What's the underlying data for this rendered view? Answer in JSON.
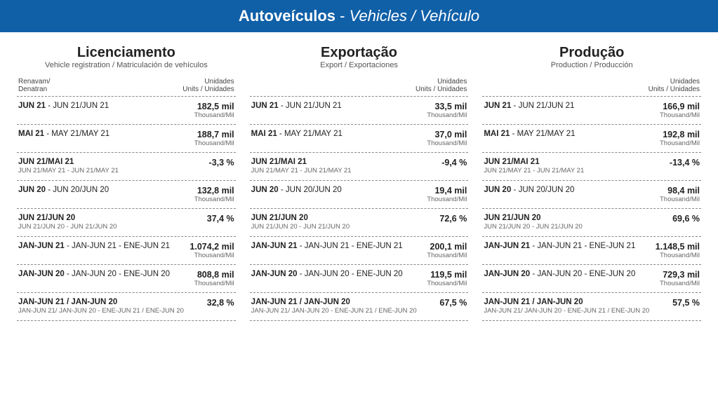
{
  "header": {
    "title_bold": "Autoveículos",
    "title_sep": " - ",
    "title_sub": "Vehicles / Vehículo"
  },
  "columns": [
    {
      "title": "Licenciamento",
      "subtitle": "Vehicle registration / Matriculación de vehículos",
      "subhead_left_l1": "Renavam/",
      "subhead_left_l2": "Denatran",
      "subhead_right_l1": "Unidades",
      "subhead_right_l2": "Units / Unidades",
      "rows": [
        {
          "l1_bold": "JUN 21",
          "l1_rest": " - JUN 21/JUN 21",
          "l2": "",
          "v1": "182,5 mil",
          "v2": "Thousand/Mil"
        },
        {
          "l1_bold": "MAI 21",
          "l1_rest": " - MAY 21/MAY 21",
          "l2": "",
          "v1": "188,7 mil",
          "v2": "Thousand/Mil"
        },
        {
          "l1_bold": "JUN 21/MAI 21",
          "l1_rest": "",
          "l2": "JUN 21/MAY 21 - JUN 21/MAY 21",
          "v1": "-3,3 %",
          "v2": ""
        },
        {
          "l1_bold": "JUN 20",
          "l1_rest": " - JUN 20/JUN 20",
          "l2": "",
          "v1": "132,8 mil",
          "v2": "Thousand/Mil"
        },
        {
          "l1_bold": "JUN 21/JUN 20",
          "l1_rest": "",
          "l2": "JUN 21/JUN 20 - JUN 21/JUN 20",
          "v1": "37,4 %",
          "v2": ""
        },
        {
          "l1_bold": "JAN-JUN 21",
          "l1_rest": " - JAN-JUN 21 - ENE-JUN 21",
          "l2": "",
          "v1": "1.074,2 mil",
          "v2": "Thousand/Mil"
        },
        {
          "l1_bold": "JAN-JUN 20",
          "l1_rest": " - JAN-JUN 20 - ENE-JUN 20",
          "l2": "",
          "v1": "808,8 mil",
          "v2": "Thousand/Mil"
        },
        {
          "l1_bold": "JAN-JUN 21 / JAN-JUN 20",
          "l1_rest": "",
          "l2": "JAN-JUN 21/ JAN-JUN  20 - ENE-JUN  21 / ENE-JUN 20",
          "v1": "32,8 %",
          "v2": ""
        }
      ]
    },
    {
      "title": "Exportação",
      "subtitle": "Export / Exportaciones",
      "subhead_left_l1": "",
      "subhead_left_l2": "",
      "subhead_right_l1": "Unidades",
      "subhead_right_l2": "Units / Unidades",
      "rows": [
        {
          "l1_bold": "JUN 21",
          "l1_rest": " - JUN 21/JUN 21",
          "l2": "",
          "v1": "33,5 mil",
          "v2": "Thousand/Mil"
        },
        {
          "l1_bold": "MAI 21",
          "l1_rest": " - MAY 21/MAY 21",
          "l2": "",
          "v1": "37,0 mil",
          "v2": "Thousand/Mil"
        },
        {
          "l1_bold": "JUN 21/MAI 21",
          "l1_rest": "",
          "l2": "JUN 21/MAY 21 - JUN 21/MAY 21",
          "v1": "-9,4 %",
          "v2": ""
        },
        {
          "l1_bold": "JUN 20",
          "l1_rest": " - JUN 20/JUN 20",
          "l2": "",
          "v1": "19,4 mil",
          "v2": "Thousand/Mil"
        },
        {
          "l1_bold": "JUN 21/JUN 20",
          "l1_rest": "",
          "l2": "JUN 21/JUN 20 - JUN 21/JUN 20",
          "v1": "72,6 %",
          "v2": ""
        },
        {
          "l1_bold": "JAN-JUN 21",
          "l1_rest": " - JAN-JUN 21 - ENE-JUN 21",
          "l2": "",
          "v1": "200,1 mil",
          "v2": "Thousand/Mil"
        },
        {
          "l1_bold": "JAN-JUN 20",
          "l1_rest": " - JAN-JUN 20 - ENE-JUN 20",
          "l2": "",
          "v1": "119,5 mil",
          "v2": "Thousand/Mil"
        },
        {
          "l1_bold": "JAN-JUN 21 / JAN-JUN 20",
          "l1_rest": "",
          "l2": "JAN-JUN 21/ JAN-JUN  20 - ENE-JUN  21 / ENE-JUN 20",
          "v1": "67,5 %",
          "v2": ""
        }
      ]
    },
    {
      "title": "Produção",
      "subtitle": "Production / Producción",
      "subhead_left_l1": "",
      "subhead_left_l2": "",
      "subhead_right_l1": "Unidades",
      "subhead_right_l2": "Units / Unidades",
      "rows": [
        {
          "l1_bold": "JUN 21",
          "l1_rest": " - JUN 21/JUN 21",
          "l2": "",
          "v1": "166,9 mil",
          "v2": "Thousand/Mil"
        },
        {
          "l1_bold": "MAI 21",
          "l1_rest": " - MAY 21/MAY 21",
          "l2": "",
          "v1": "192,8 mil",
          "v2": "Thousand/Mil"
        },
        {
          "l1_bold": "JUN 21/MAI 21",
          "l1_rest": "",
          "l2": "JUN 21/MAY 21 - JUN 21/MAY 21",
          "v1": "-13,4 %",
          "v2": ""
        },
        {
          "l1_bold": "JUN 20",
          "l1_rest": " - JUN 20/JUN 20",
          "l2": "",
          "v1": "98,4 mil",
          "v2": "Thousand/Mil"
        },
        {
          "l1_bold": "JUN 21/JUN 20",
          "l1_rest": "",
          "l2": "JUN 21/JUN 20 - JUN 21/JUN 20",
          "v1": "69,6 %",
          "v2": ""
        },
        {
          "l1_bold": "JAN-JUN 21",
          "l1_rest": " - JAN-JUN 21 - ENE-JUN 21",
          "l2": "",
          "v1": "1.148,5 mil",
          "v2": "Thousand/Mil"
        },
        {
          "l1_bold": "JAN-JUN 20",
          "l1_rest": " - JAN-JUN 20 - ENE-JUN 20",
          "l2": "",
          "v1": "729,3 mil",
          "v2": "Thousand/Mil"
        },
        {
          "l1_bold": "JAN-JUN 21 / JAN-JUN 20",
          "l1_rest": "",
          "l2": "JAN-JUN 21/ JAN-JUN  20 - ENE-JUN  21 / ENE-JUN 20",
          "v1": "57,5 %",
          "v2": ""
        }
      ]
    }
  ]
}
